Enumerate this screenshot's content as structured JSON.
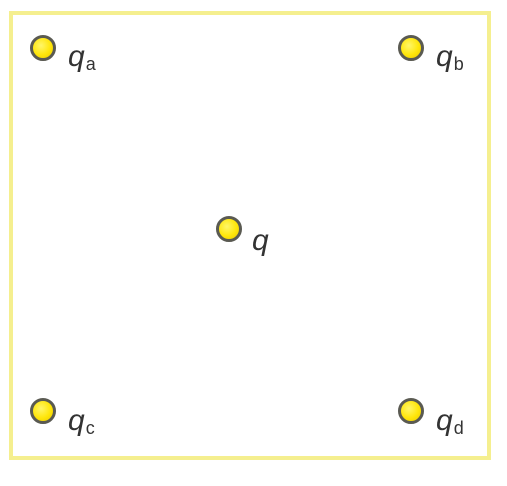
{
  "charges": {
    "a": {
      "symbol": "q",
      "subscript": "a"
    },
    "b": {
      "symbol": "q",
      "subscript": "b"
    },
    "c": {
      "symbol": "q",
      "subscript": "c"
    },
    "d": {
      "symbol": "q",
      "subscript": "d"
    },
    "center": {
      "symbol": "q"
    }
  },
  "colors": {
    "border": "#f5ef8f",
    "charge_fill": "#ffe60a",
    "charge_outline": "#5a5a52",
    "text": "#333333"
  }
}
